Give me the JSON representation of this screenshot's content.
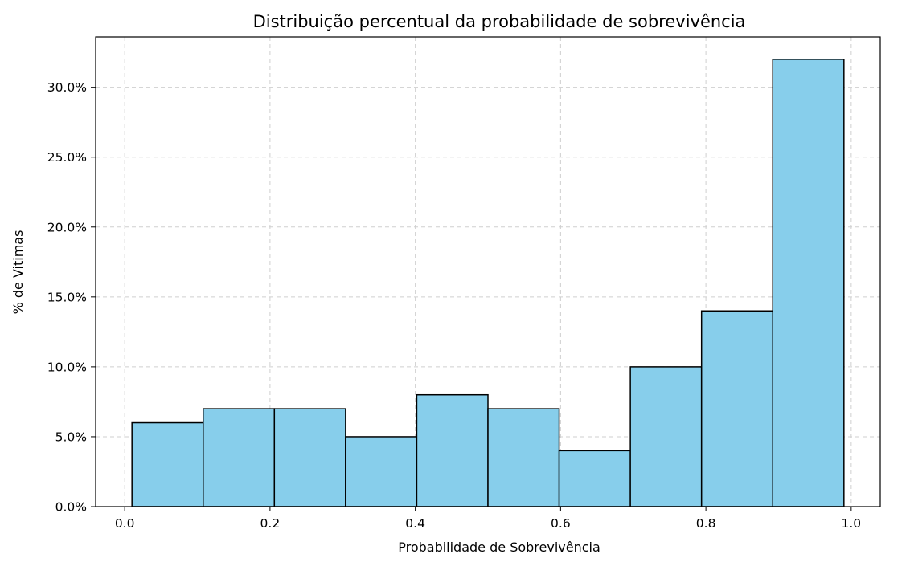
{
  "chart_data": {
    "type": "bar",
    "title": "Distribuição percentual da probabilidade de sobrevivência",
    "xlabel": "Probabilidade de Sobrevivência",
    "ylabel": "% de Vitimas",
    "bar_color": "#87CEEB",
    "edge_color": "#000000",
    "grid": true,
    "xlim": [
      -0.04,
      1.04
    ],
    "ylim": [
      0,
      33.6
    ],
    "x_ticks": [
      0.0,
      0.2,
      0.4,
      0.6,
      0.8,
      1.0
    ],
    "x_tick_labels": [
      "0.0",
      "0.2",
      "0.4",
      "0.6",
      "0.8",
      "1.0"
    ],
    "y_ticks": [
      0,
      5,
      10,
      15,
      20,
      25,
      30
    ],
    "y_tick_labels": [
      "0.0%",
      "5.0%",
      "10.0%",
      "15.0%",
      "20.0%",
      "25.0%",
      "30.0%"
    ],
    "bins": [
      {
        "start": 0.01,
        "end": 0.108,
        "value": 6
      },
      {
        "start": 0.108,
        "end": 0.206,
        "value": 7
      },
      {
        "start": 0.206,
        "end": 0.304,
        "value": 7
      },
      {
        "start": 0.304,
        "end": 0.402,
        "value": 5
      },
      {
        "start": 0.402,
        "end": 0.5,
        "value": 8
      },
      {
        "start": 0.5,
        "end": 0.598,
        "value": 7
      },
      {
        "start": 0.598,
        "end": 0.696,
        "value": 4
      },
      {
        "start": 0.696,
        "end": 0.794,
        "value": 10
      },
      {
        "start": 0.794,
        "end": 0.892,
        "value": 14
      },
      {
        "start": 0.892,
        "end": 0.99,
        "value": 32
      }
    ]
  }
}
